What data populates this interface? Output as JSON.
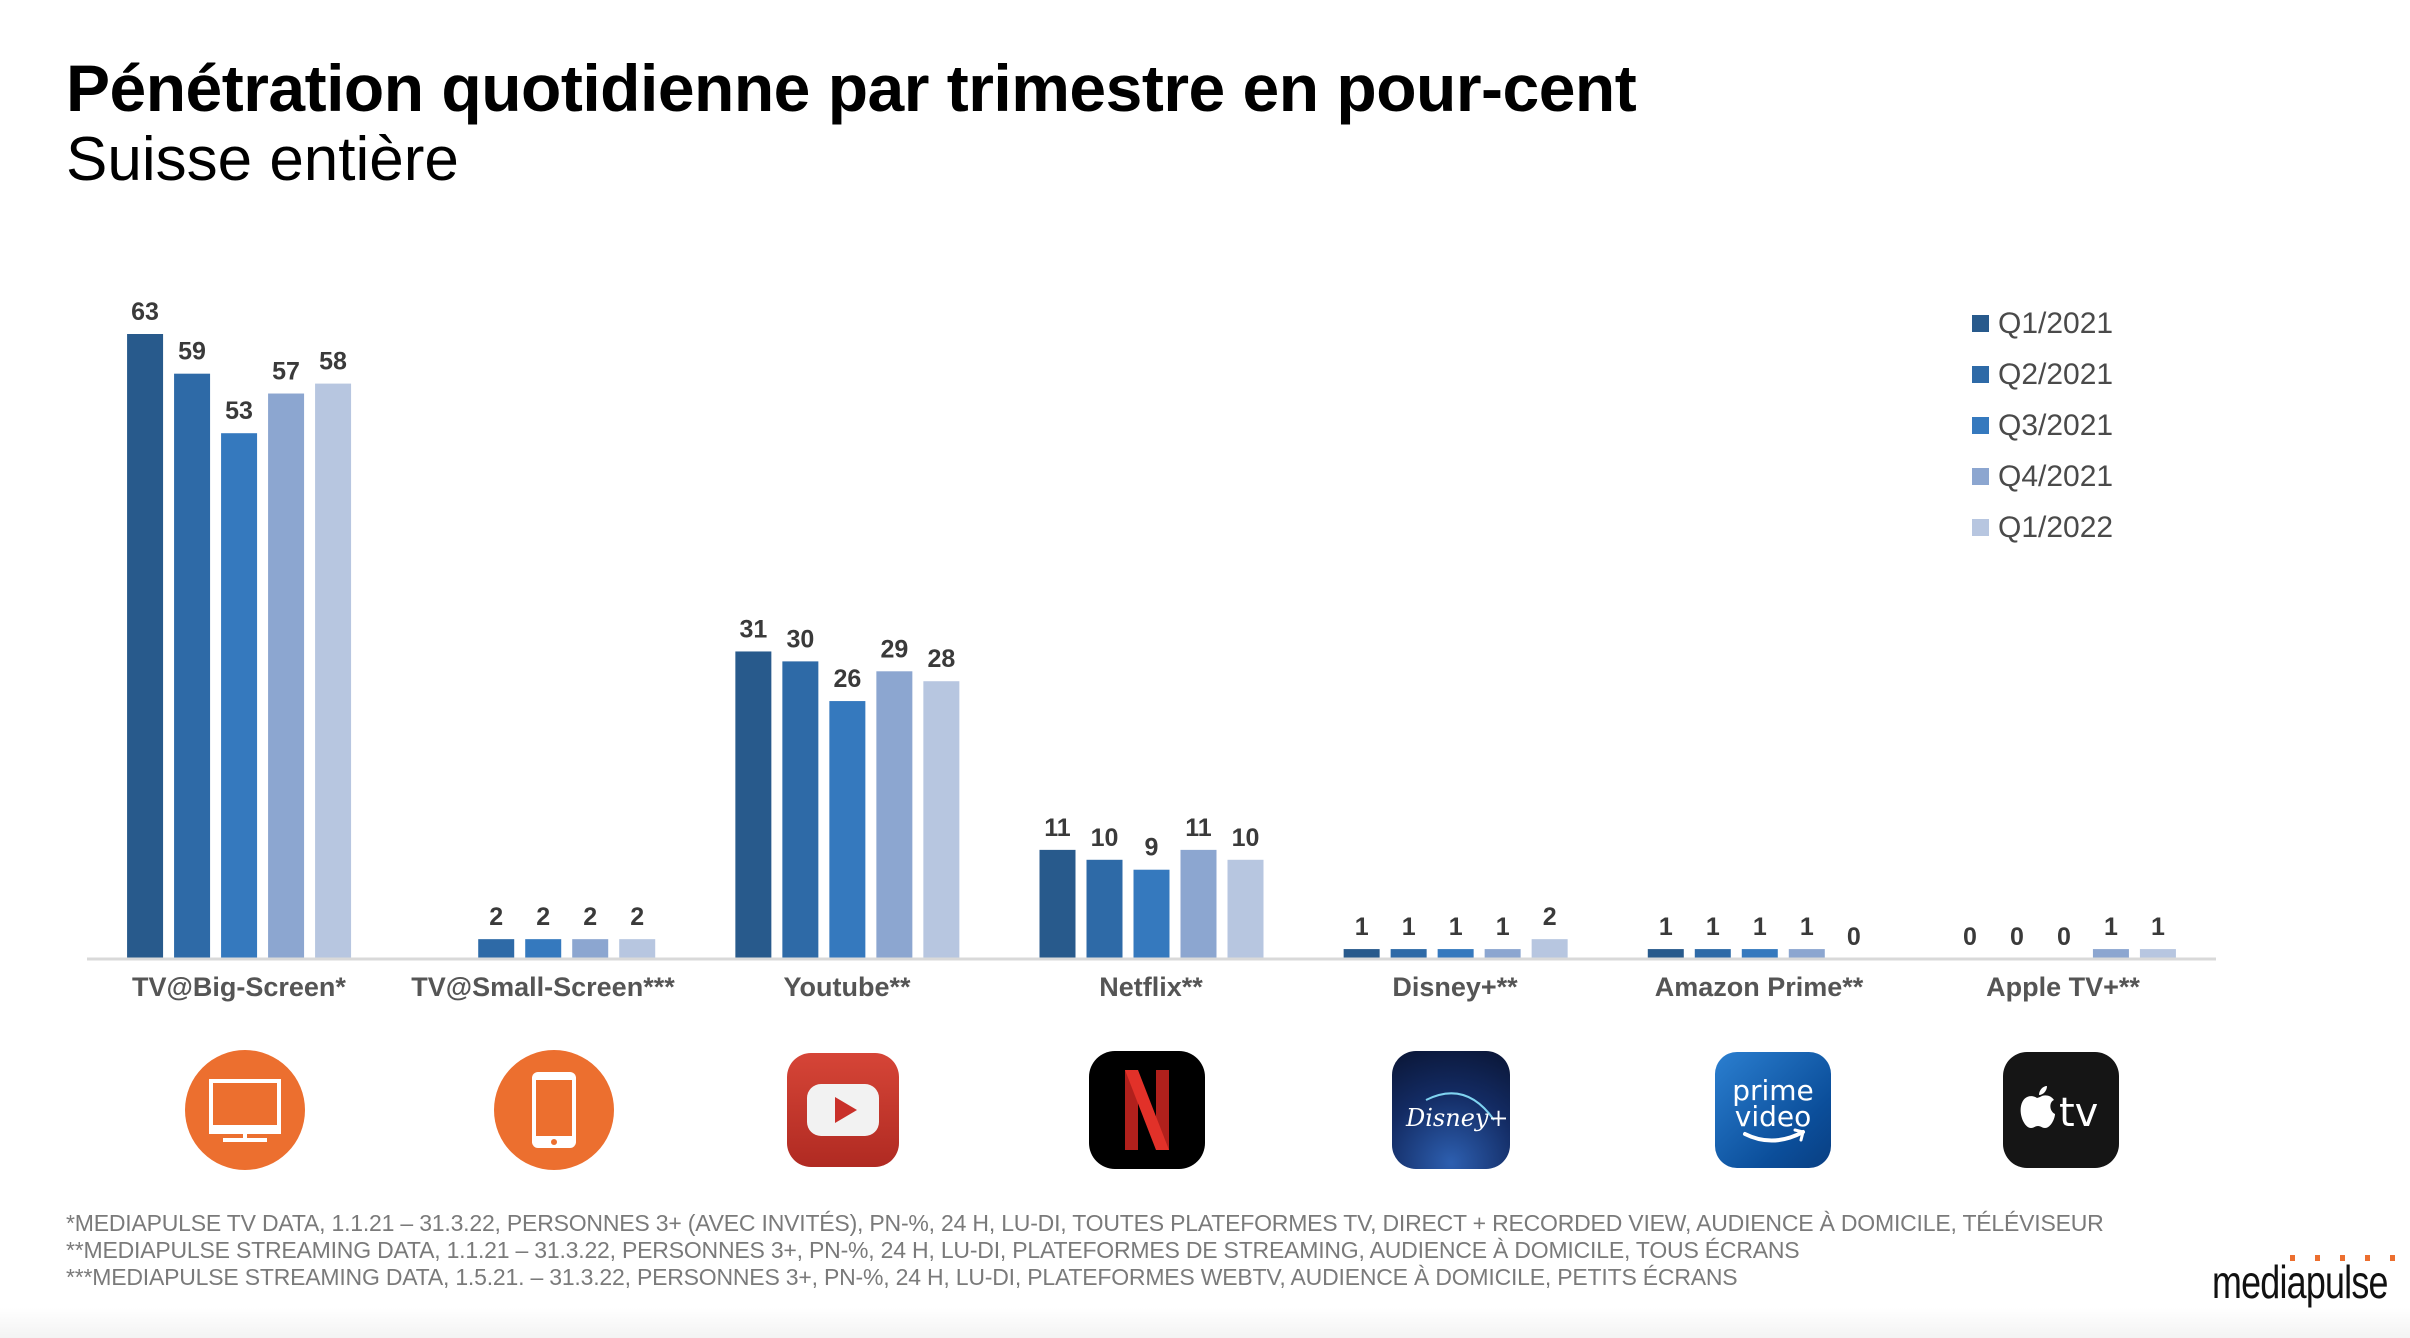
{
  "header": {
    "title": "Pénétration quotidienne par trimestre en pour-cent",
    "subtitle": "Suisse entière"
  },
  "chart_data": {
    "type": "bar",
    "title": "Pénétration quotidienne par trimestre en pour-cent",
    "subtitle": "Suisse entière",
    "xlabel": "",
    "ylabel": "",
    "ylim": [
      0,
      63
    ],
    "grid": false,
    "legend_position": "top-right",
    "categories": [
      "TV@Big-Screen*",
      "TV@Small-Screen***",
      "Youtube**",
      "Netflix**",
      "Disney+**",
      "Amazon Prime**",
      "Apple TV+**"
    ],
    "series": [
      {
        "name": "Q1/2021",
        "color": "#285a8c",
        "values": [
          63,
          null,
          31,
          11,
          1,
          1,
          0
        ]
      },
      {
        "name": "Q2/2021",
        "color": "#2e6aa7",
        "values": [
          59,
          2,
          30,
          10,
          1,
          1,
          0
        ]
      },
      {
        "name": "Q3/2021",
        "color": "#3579be",
        "values": [
          53,
          2,
          26,
          9,
          1,
          1,
          0
        ]
      },
      {
        "name": "Q4/2021",
        "color": "#8ca6d0",
        "values": [
          57,
          2,
          29,
          11,
          1,
          1,
          1
        ]
      },
      {
        "name": "Q1/2022",
        "color": "#b7c6e0",
        "values": [
          58,
          2,
          28,
          10,
          2,
          0,
          1
        ]
      }
    ]
  },
  "logos": [
    {
      "category": "TV@Big-Screen*",
      "icon": "tv-icon",
      "color": "#ec6f2f"
    },
    {
      "category": "TV@Small-Screen***",
      "icon": "tablet-icon",
      "color": "#ec6f2f"
    },
    {
      "category": "Youtube**",
      "icon": "youtube-logo-icon"
    },
    {
      "category": "Netflix**",
      "icon": "netflix-logo-icon"
    },
    {
      "category": "Disney+**",
      "icon": "disney-plus-logo-icon",
      "text": "Disney+"
    },
    {
      "category": "Amazon Prime**",
      "icon": "prime-video-logo-icon",
      "text_line1": "prime",
      "text_line2": "video"
    },
    {
      "category": "Apple TV+**",
      "icon": "apple-tv-logo-icon",
      "text": "tv"
    }
  ],
  "footnotes": [
    "*MEDIAPULSE TV DATA, 1.1.21 – 31.3.22, PERSONNES 3+ (AVEC INVITÉS), PN-%, 24 H, LU-DI, TOUTES PLATEFORMES TV, DIRECT + RECORDED VIEW, AUDIENCE À DOMICILE, TÉLÉVISEUR",
    "**MEDIAPULSE STREAMING DATA, 1.1.21 – 31.3.22, PERSONNES 3+, PN-%, 24 H, LU-DI, PLATEFORMES DE STREAMING, AUDIENCE À DOMICILE, TOUS ÉCRANS",
    "***MEDIAPULSE STREAMING DATA, 1.5.21. – 31.3.22, PERSONNES 3+, PN-%, 24 H, LU-DI, PLATEFORMES WEBTV, AUDIENCE À DOMICILE, PETITS ÉCRANS"
  ],
  "brand": {
    "name": "mediapulse",
    "accent_color": "#ec6f2f"
  }
}
